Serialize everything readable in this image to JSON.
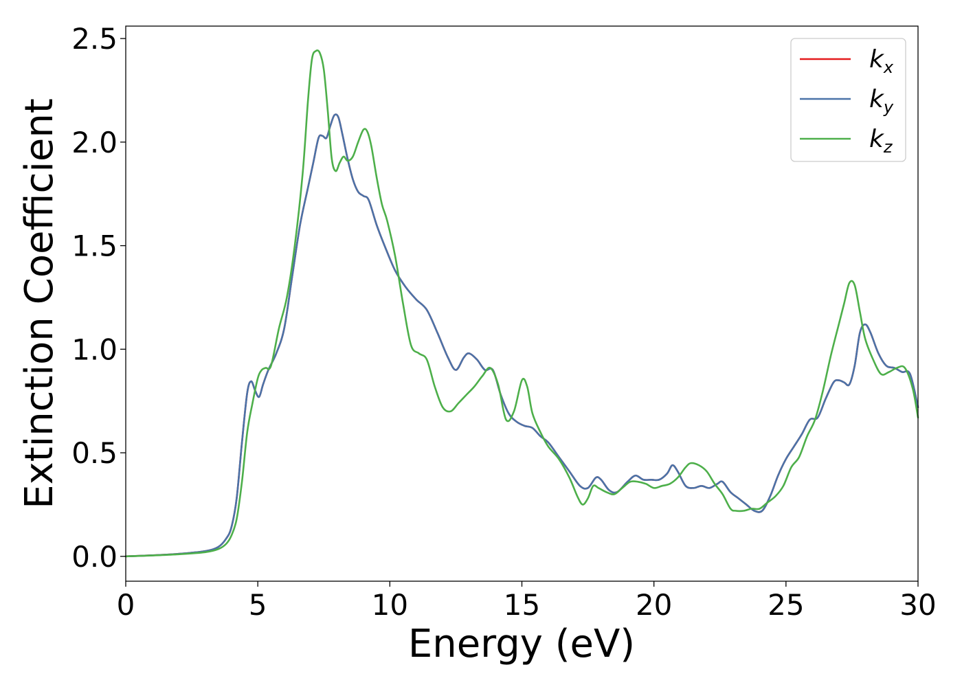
{
  "chart_data": {
    "type": "line",
    "xlabel": "Energy (eV)",
    "ylabel": "Extinction Coefficient",
    "xlim": [
      0,
      30
    ],
    "ylim": [
      -0.12,
      2.56
    ],
    "xticks": [
      0,
      5,
      10,
      15,
      20,
      25,
      30
    ],
    "xtick_labels": [
      "0",
      "5",
      "10",
      "15",
      "20",
      "25",
      "30"
    ],
    "yticks": [
      0.0,
      0.5,
      1.0,
      1.5,
      2.0,
      2.5
    ],
    "ytick_labels": [
      "0.0",
      "0.5",
      "1.0",
      "1.5",
      "2.0",
      "2.5"
    ],
    "grid": false,
    "legend_position": "top-right",
    "series": [
      {
        "name": "k_x",
        "legend_base": "k",
        "legend_sub": "x",
        "color": "#e41a1c",
        "x": [
          0,
          1,
          2,
          3,
          3.5,
          3.8,
          4.0,
          4.2,
          4.4,
          4.6,
          4.75,
          4.9,
          5.05,
          5.2,
          5.4,
          5.7,
          6.0,
          6.3,
          6.6,
          6.9,
          7.1,
          7.3,
          7.45,
          7.6,
          7.75,
          7.9,
          8.05,
          8.2,
          8.4,
          8.6,
          8.8,
          9.0,
          9.2,
          9.5,
          9.8,
          10.2,
          10.6,
          11.0,
          11.4,
          11.8,
          12.2,
          12.5,
          12.8,
          13.0,
          13.3,
          13.6,
          13.9,
          14.2,
          14.5,
          14.8,
          15.1,
          15.4,
          15.7,
          16.0,
          16.4,
          16.8,
          17.2,
          17.5,
          17.8,
          18.0,
          18.3,
          18.6,
          19.0,
          19.3,
          19.6,
          19.9,
          20.2,
          20.5,
          20.7,
          20.9,
          21.2,
          21.5,
          21.8,
          22.1,
          22.4,
          22.6,
          22.9,
          23.2,
          23.5,
          23.8,
          24.1,
          24.4,
          24.7,
          25.0,
          25.3,
          25.6,
          25.9,
          26.2,
          26.5,
          26.8,
          27.0,
          27.2,
          27.4,
          27.6,
          27.8,
          28.0,
          28.2,
          28.5,
          28.8,
          29.1,
          29.4,
          29.7,
          30.0
        ],
        "y": [
          0.0,
          0.005,
          0.012,
          0.025,
          0.045,
          0.085,
          0.14,
          0.28,
          0.55,
          0.79,
          0.845,
          0.8,
          0.77,
          0.83,
          0.9,
          0.98,
          1.1,
          1.35,
          1.6,
          1.78,
          1.9,
          2.02,
          2.03,
          2.02,
          2.08,
          2.13,
          2.12,
          2.04,
          1.92,
          1.82,
          1.76,
          1.74,
          1.72,
          1.6,
          1.5,
          1.38,
          1.3,
          1.24,
          1.19,
          1.08,
          0.96,
          0.9,
          0.96,
          0.98,
          0.95,
          0.9,
          0.9,
          0.78,
          0.69,
          0.65,
          0.63,
          0.62,
          0.58,
          0.55,
          0.48,
          0.41,
          0.34,
          0.33,
          0.38,
          0.37,
          0.32,
          0.31,
          0.36,
          0.39,
          0.37,
          0.37,
          0.37,
          0.4,
          0.44,
          0.41,
          0.34,
          0.33,
          0.34,
          0.33,
          0.35,
          0.36,
          0.31,
          0.28,
          0.25,
          0.22,
          0.22,
          0.29,
          0.39,
          0.47,
          0.53,
          0.59,
          0.66,
          0.67,
          0.76,
          0.84,
          0.85,
          0.84,
          0.83,
          0.92,
          1.08,
          1.12,
          1.08,
          0.98,
          0.92,
          0.91,
          0.89,
          0.88,
          0.72
        ]
      },
      {
        "name": "k_y",
        "legend_base": "k",
        "legend_sub": "y",
        "color": "#4a73a8",
        "x": [
          0,
          1,
          2,
          3,
          3.5,
          3.8,
          4.0,
          4.2,
          4.4,
          4.6,
          4.75,
          4.9,
          5.05,
          5.2,
          5.4,
          5.7,
          6.0,
          6.3,
          6.6,
          6.9,
          7.1,
          7.3,
          7.45,
          7.6,
          7.75,
          7.9,
          8.05,
          8.2,
          8.4,
          8.6,
          8.8,
          9.0,
          9.2,
          9.5,
          9.8,
          10.2,
          10.6,
          11.0,
          11.4,
          11.8,
          12.2,
          12.5,
          12.8,
          13.0,
          13.3,
          13.6,
          13.9,
          14.2,
          14.5,
          14.8,
          15.1,
          15.4,
          15.7,
          16.0,
          16.4,
          16.8,
          17.2,
          17.5,
          17.8,
          18.0,
          18.3,
          18.6,
          19.0,
          19.3,
          19.6,
          19.9,
          20.2,
          20.5,
          20.7,
          20.9,
          21.2,
          21.5,
          21.8,
          22.1,
          22.4,
          22.6,
          22.9,
          23.2,
          23.5,
          23.8,
          24.1,
          24.4,
          24.7,
          25.0,
          25.3,
          25.6,
          25.9,
          26.2,
          26.5,
          26.8,
          27.0,
          27.2,
          27.4,
          27.6,
          27.8,
          28.0,
          28.2,
          28.5,
          28.8,
          29.1,
          29.4,
          29.7,
          30.0
        ],
        "y": [
          0.0,
          0.005,
          0.012,
          0.025,
          0.045,
          0.085,
          0.14,
          0.28,
          0.55,
          0.79,
          0.845,
          0.8,
          0.77,
          0.83,
          0.9,
          0.98,
          1.1,
          1.35,
          1.6,
          1.78,
          1.9,
          2.02,
          2.03,
          2.02,
          2.08,
          2.13,
          2.12,
          2.04,
          1.92,
          1.82,
          1.76,
          1.74,
          1.72,
          1.6,
          1.5,
          1.38,
          1.3,
          1.24,
          1.19,
          1.08,
          0.96,
          0.9,
          0.96,
          0.98,
          0.95,
          0.9,
          0.9,
          0.78,
          0.69,
          0.65,
          0.63,
          0.62,
          0.58,
          0.55,
          0.48,
          0.41,
          0.34,
          0.33,
          0.38,
          0.37,
          0.32,
          0.31,
          0.36,
          0.39,
          0.37,
          0.37,
          0.37,
          0.4,
          0.44,
          0.41,
          0.34,
          0.33,
          0.34,
          0.33,
          0.35,
          0.36,
          0.31,
          0.28,
          0.25,
          0.22,
          0.22,
          0.29,
          0.39,
          0.47,
          0.53,
          0.59,
          0.66,
          0.67,
          0.76,
          0.84,
          0.85,
          0.84,
          0.83,
          0.92,
          1.08,
          1.12,
          1.08,
          0.98,
          0.92,
          0.91,
          0.89,
          0.88,
          0.72
        ]
      },
      {
        "name": "k_z",
        "legend_base": "k",
        "legend_sub": "z",
        "color": "#4daf4a",
        "x": [
          0,
          1,
          2,
          3,
          3.5,
          3.8,
          4.0,
          4.2,
          4.4,
          4.6,
          4.8,
          5.0,
          5.15,
          5.3,
          5.5,
          5.8,
          6.1,
          6.4,
          6.7,
          6.9,
          7.05,
          7.2,
          7.35,
          7.5,
          7.65,
          7.8,
          7.95,
          8.1,
          8.25,
          8.4,
          8.6,
          8.8,
          9.0,
          9.15,
          9.3,
          9.5,
          9.7,
          9.9,
          10.2,
          10.5,
          10.8,
          11.1,
          11.4,
          11.7,
          12.0,
          12.3,
          12.6,
          12.9,
          13.2,
          13.5,
          13.8,
          14.1,
          14.4,
          14.7,
          15.0,
          15.2,
          15.4,
          15.7,
          16.0,
          16.4,
          16.8,
          17.1,
          17.3,
          17.5,
          17.7,
          17.9,
          18.2,
          18.5,
          18.8,
          19.1,
          19.4,
          19.7,
          20.0,
          20.3,
          20.6,
          20.9,
          21.2,
          21.4,
          21.7,
          22.0,
          22.3,
          22.6,
          22.9,
          23.1,
          23.4,
          23.7,
          24.0,
          24.3,
          24.6,
          24.9,
          25.2,
          25.5,
          25.8,
          26.1,
          26.4,
          26.7,
          27.0,
          27.2,
          27.4,
          27.6,
          27.8,
          28.0,
          28.3,
          28.6,
          28.9,
          29.2,
          29.5,
          29.8,
          30.0
        ],
        "y": [
          0.0,
          0.004,
          0.01,
          0.02,
          0.035,
          0.06,
          0.1,
          0.18,
          0.36,
          0.6,
          0.74,
          0.86,
          0.9,
          0.91,
          0.92,
          1.1,
          1.25,
          1.5,
          1.85,
          2.2,
          2.4,
          2.44,
          2.43,
          2.35,
          2.15,
          1.92,
          1.86,
          1.9,
          1.93,
          1.91,
          1.93,
          2.0,
          2.06,
          2.05,
          1.98,
          1.83,
          1.7,
          1.62,
          1.45,
          1.22,
          1.02,
          0.98,
          0.95,
          0.82,
          0.72,
          0.7,
          0.74,
          0.78,
          0.82,
          0.87,
          0.91,
          0.83,
          0.66,
          0.7,
          0.85,
          0.82,
          0.69,
          0.6,
          0.53,
          0.47,
          0.38,
          0.29,
          0.25,
          0.28,
          0.34,
          0.33,
          0.31,
          0.3,
          0.33,
          0.36,
          0.36,
          0.35,
          0.33,
          0.34,
          0.35,
          0.38,
          0.43,
          0.45,
          0.44,
          0.41,
          0.35,
          0.3,
          0.23,
          0.22,
          0.22,
          0.23,
          0.23,
          0.26,
          0.29,
          0.34,
          0.43,
          0.48,
          0.58,
          0.66,
          0.8,
          0.97,
          1.12,
          1.22,
          1.32,
          1.31,
          1.18,
          1.05,
          0.95,
          0.88,
          0.89,
          0.91,
          0.91,
          0.81,
          0.67
        ]
      }
    ]
  }
}
